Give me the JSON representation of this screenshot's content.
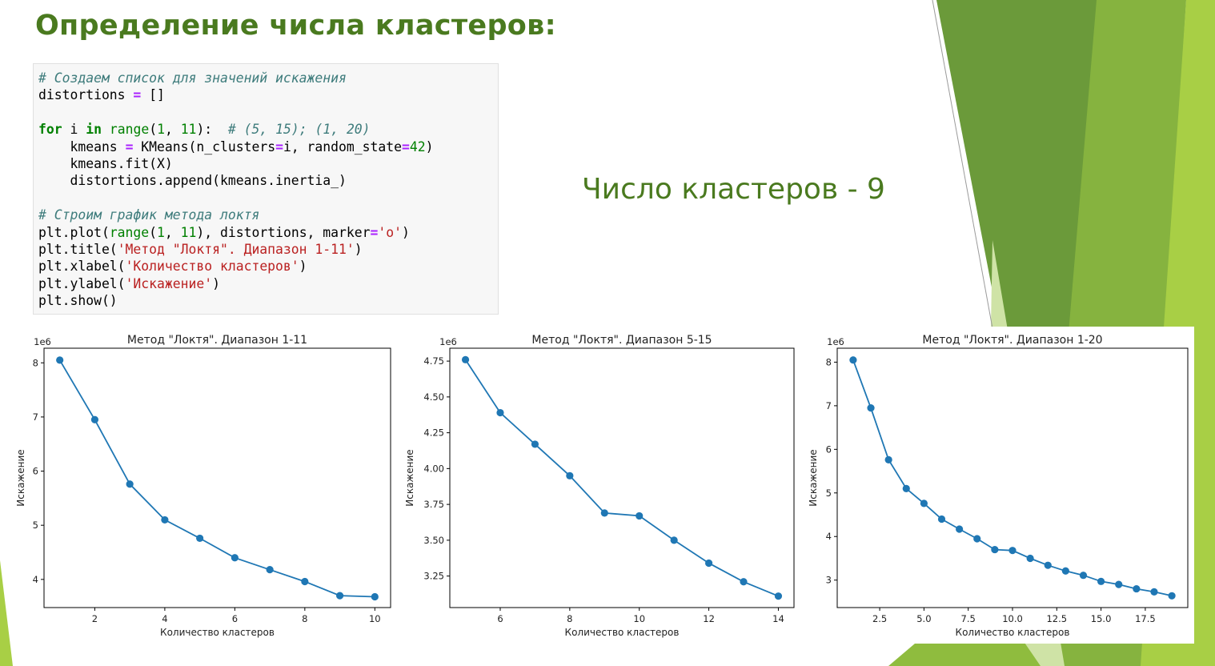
{
  "slide": {
    "title": "Определение числа кластеров:",
    "result_text": "Число кластеров - 9"
  },
  "code": {
    "lines": [
      [
        {
          "t": "# Создаем список для значений искажения",
          "c": "cm"
        }
      ],
      [
        {
          "t": "distortions "
        },
        {
          "t": "=",
          "c": "op"
        },
        {
          "t": " []"
        }
      ],
      [],
      [
        {
          "t": "for",
          "c": "kw"
        },
        {
          "t": " i "
        },
        {
          "t": "in",
          "c": "kw"
        },
        {
          "t": " "
        },
        {
          "t": "range",
          "c": "bi"
        },
        {
          "t": "("
        },
        {
          "t": "1",
          "c": "num"
        },
        {
          "t": ", "
        },
        {
          "t": "11",
          "c": "num"
        },
        {
          "t": "):  "
        },
        {
          "t": "# (5, 15); (1, 20)",
          "c": "cm"
        }
      ],
      [
        {
          "t": "    kmeans "
        },
        {
          "t": "=",
          "c": "op"
        },
        {
          "t": " KMeans(n_clusters"
        },
        {
          "t": "=",
          "c": "op"
        },
        {
          "t": "i, random_state"
        },
        {
          "t": "=",
          "c": "op"
        },
        {
          "t": "42",
          "c": "num"
        },
        {
          "t": ")"
        }
      ],
      [
        {
          "t": "    kmeans.fit(X)"
        }
      ],
      [
        {
          "t": "    distortions.append(kmeans.inertia_)"
        }
      ],
      [],
      [
        {
          "t": "# Строим график метода локтя",
          "c": "cm"
        }
      ],
      [
        {
          "t": "plt.plot("
        },
        {
          "t": "range",
          "c": "bi"
        },
        {
          "t": "("
        },
        {
          "t": "1",
          "c": "num"
        },
        {
          "t": ", "
        },
        {
          "t": "11",
          "c": "num"
        },
        {
          "t": "), distortions, marker"
        },
        {
          "t": "=",
          "c": "op"
        },
        {
          "t": "'o'",
          "c": "str"
        },
        {
          "t": ")"
        }
      ],
      [
        {
          "t": "plt.title("
        },
        {
          "t": "'Метод \"Локтя\". Диапазон 1-11'",
          "c": "str"
        },
        {
          "t": ")"
        }
      ],
      [
        {
          "t": "plt.xlabel("
        },
        {
          "t": "'Количество кластеров'",
          "c": "str"
        },
        {
          "t": ")"
        }
      ],
      [
        {
          "t": "plt.ylabel("
        },
        {
          "t": "'Искажение'",
          "c": "str"
        },
        {
          "t": ")"
        }
      ],
      [
        {
          "t": "plt.show()"
        }
      ]
    ]
  },
  "colors": {
    "title_green": "#4a7a1f",
    "series_blue": "#1f77b4",
    "deco_greens": [
      "#8fbc3e",
      "#6b9a3a",
      "#a8cf45",
      "#cfe3a6"
    ]
  },
  "chart_data": [
    {
      "type": "line",
      "title": "Метод \"Локтя\". Диапазон 1-11",
      "xlabel": "Количество кластеров",
      "ylabel": "Искажение",
      "y_scale_label": "1e6",
      "x": [
        1,
        2,
        3,
        4,
        5,
        6,
        7,
        8,
        9,
        10
      ],
      "values": [
        8.05,
        6.95,
        5.76,
        5.1,
        4.76,
        4.4,
        4.18,
        3.96,
        3.7,
        3.68
      ],
      "marker": "o",
      "grid": false,
      "xlim": [
        0.55,
        10.45
      ],
      "ylim": [
        3.48,
        8.27
      ],
      "xticks": [
        2,
        4,
        6,
        8,
        10
      ],
      "xtick_labels": [
        "2",
        "4",
        "6",
        "8",
        "10"
      ],
      "yticks": [
        4,
        5,
        6,
        7,
        8
      ],
      "ytick_labels": [
        "4",
        "5",
        "6",
        "7",
        "8"
      ]
    },
    {
      "type": "line",
      "title": "Метод \"Локтя\". Диапазон 5-15",
      "xlabel": "Количество кластеров",
      "ylabel": "Искажение",
      "y_scale_label": "1e6",
      "x": [
        5,
        6,
        7,
        8,
        9,
        10,
        11,
        12,
        13,
        14
      ],
      "values": [
        4.76,
        4.39,
        4.17,
        3.95,
        3.69,
        3.67,
        3.5,
        3.34,
        3.21,
        3.11
      ],
      "marker": "o",
      "grid": false,
      "xlim": [
        4.55,
        14.45
      ],
      "ylim": [
        3.03,
        4.84
      ],
      "xticks": [
        6,
        8,
        10,
        12,
        14
      ],
      "xtick_labels": [
        "6",
        "8",
        "10",
        "12",
        "14"
      ],
      "yticks": [
        3.25,
        3.5,
        3.75,
        4.0,
        4.25,
        4.5,
        4.75
      ],
      "ytick_labels": [
        "3.25",
        "3.50",
        "3.75",
        "4.00",
        "4.25",
        "4.50",
        "4.75"
      ]
    },
    {
      "type": "line",
      "title": "Метод \"Локтя\". Диапазон 1-20",
      "xlabel": "Количество кластеров",
      "ylabel": "Искажение",
      "y_scale_label": "1e6",
      "x": [
        1,
        2,
        3,
        4,
        5,
        6,
        7,
        8,
        9,
        10,
        11,
        12,
        13,
        14,
        15,
        16,
        17,
        18,
        19
      ],
      "values": [
        8.05,
        6.95,
        5.76,
        5.1,
        4.76,
        4.4,
        4.17,
        3.95,
        3.7,
        3.68,
        3.5,
        3.34,
        3.21,
        3.11,
        2.97,
        2.9,
        2.8,
        2.73,
        2.64
      ],
      "marker": "o",
      "grid": false,
      "xlim": [
        0.1,
        19.9
      ],
      "ylim": [
        2.37,
        8.32
      ],
      "xticks": [
        2.5,
        5.0,
        7.5,
        10.0,
        12.5,
        15.0,
        17.5
      ],
      "xtick_labels": [
        "2.5",
        "5.0",
        "7.5",
        "10.0",
        "12.5",
        "15.0",
        "17.5"
      ],
      "yticks": [
        3,
        4,
        5,
        6,
        7,
        8
      ],
      "ytick_labels": [
        "3",
        "4",
        "5",
        "6",
        "7",
        "8"
      ]
    }
  ]
}
